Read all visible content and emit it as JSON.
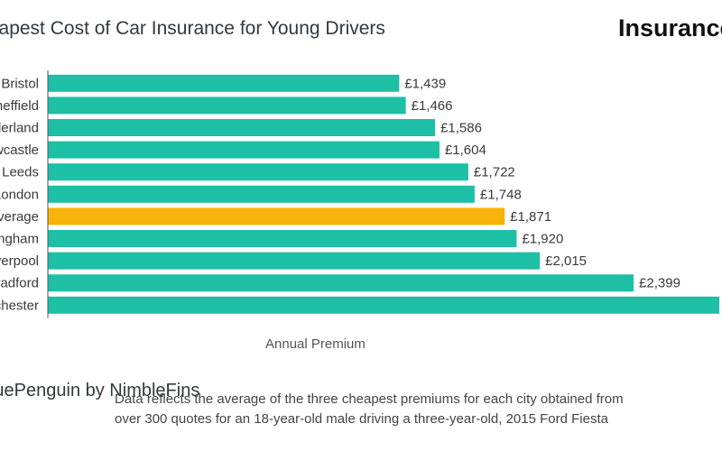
{
  "header": {
    "title": "Cheapest Cost of Car Insurance for Young Drivers",
    "brand": "Insurance"
  },
  "footer": {
    "source": "ValuePenguin by NimbleFins",
    "note_line1": "Data reflects the average of the three cheapest premiums for each city obtained from",
    "note_line2": "over 300 quotes for an 18-year-old male driving a three-year-old, 2015 Ford Fiesta"
  },
  "colors": {
    "bar": "#1dbfa5",
    "highlight": "#f8b30a",
    "axis": "#555555"
  },
  "chart_data": {
    "type": "bar",
    "orientation": "horizontal",
    "title": "Cheapest Cost of Car Insurance for Young Drivers",
    "xlabel": "Annual Premium",
    "ylabel": "",
    "categories": [
      "Bristol",
      "Sheffield",
      "Sunderland",
      "Newcastle",
      "Leeds",
      "London",
      "Average",
      "Birmingham",
      "Liverpool",
      "Bradford",
      "Manchester"
    ],
    "values": [
      1439,
      1466,
      1586,
      1604,
      1722,
      1748,
      1871,
      1920,
      2015,
      2399,
      2750
    ],
    "value_labels": [
      "£1,439",
      "£1,466",
      "£1,586",
      "£1,604",
      "£1,722",
      "£1,748",
      "£1,871",
      "£1,920",
      "£2,015",
      "£2,399",
      ""
    ],
    "highlight_category": "Average",
    "xlim": [
      0,
      2750
    ],
    "grid": false,
    "legend": "none"
  }
}
